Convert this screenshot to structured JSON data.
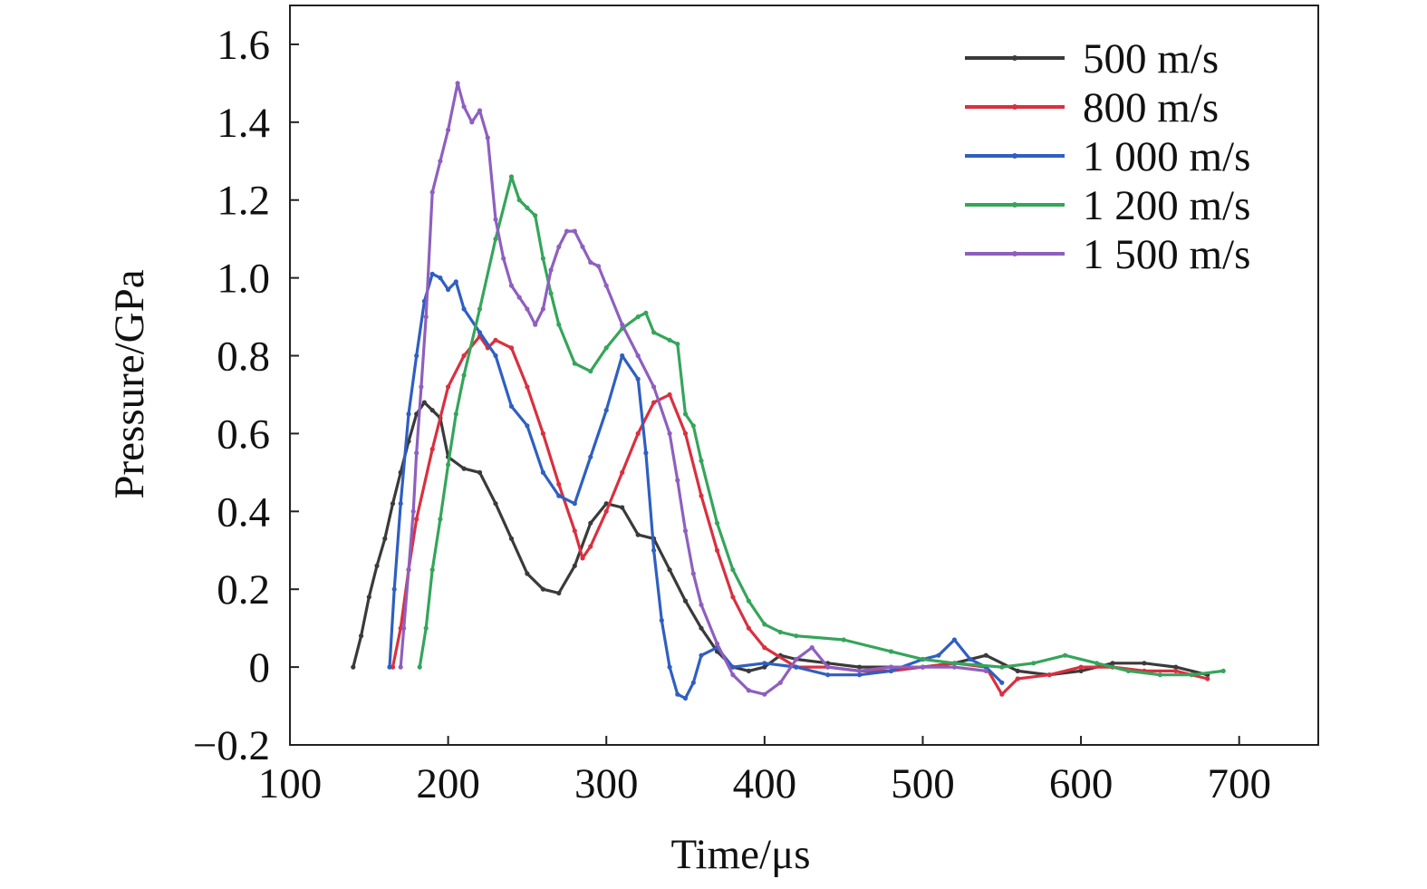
{
  "chart_data": {
    "type": "line",
    "xlabel": "Time/μs",
    "ylabel": "Pressure/GPa",
    "xlim": [
      100,
      750
    ],
    "ylim": [
      -0.2,
      1.7
    ],
    "xticks": [
      100,
      200,
      300,
      400,
      500,
      600,
      700
    ],
    "yticks": [
      -0.2,
      0,
      0.2,
      0.4,
      0.6,
      0.8,
      1.0,
      1.2,
      1.4,
      1.6
    ],
    "ytick_labels": [
      "−0.2",
      "0",
      "0.2",
      "0.4",
      "0.6",
      "0.8",
      "1.0",
      "1.2",
      "1.4",
      "1.6"
    ],
    "grid": false,
    "legend_position": "top-right",
    "series": [
      {
        "name": "500 m/s",
        "color": "#3a3a3a",
        "x": [
          140,
          145,
          150,
          155,
          160,
          165,
          170,
          175,
          180,
          185,
          190,
          195,
          200,
          210,
          220,
          230,
          240,
          250,
          260,
          270,
          280,
          290,
          300,
          310,
          320,
          330,
          340,
          350,
          360,
          370,
          380,
          390,
          400,
          410,
          420,
          440,
          460,
          480,
          500,
          520,
          540,
          560,
          580,
          600,
          620,
          640,
          660,
          680
        ],
        "y": [
          0.0,
          0.08,
          0.18,
          0.26,
          0.33,
          0.42,
          0.5,
          0.58,
          0.65,
          0.68,
          0.66,
          0.64,
          0.54,
          0.51,
          0.5,
          0.42,
          0.33,
          0.24,
          0.2,
          0.19,
          0.26,
          0.37,
          0.42,
          0.41,
          0.34,
          0.33,
          0.25,
          0.17,
          0.1,
          0.04,
          0.0,
          -0.01,
          0.0,
          0.03,
          0.02,
          0.01,
          0.0,
          0.0,
          0.0,
          0.01,
          0.03,
          -0.01,
          -0.02,
          -0.01,
          0.01,
          0.01,
          0.0,
          -0.02
        ]
      },
      {
        "name": "800 m/s",
        "color": "#d9303f",
        "x": [
          165,
          170,
          175,
          180,
          190,
          200,
          210,
          220,
          225,
          230,
          240,
          250,
          260,
          270,
          280,
          285,
          290,
          300,
          310,
          320,
          330,
          340,
          350,
          360,
          370,
          380,
          390,
          400,
          420,
          440,
          460,
          480,
          500,
          520,
          540,
          550,
          560,
          580,
          600,
          620,
          640,
          660,
          680
        ],
        "y": [
          0.0,
          0.1,
          0.25,
          0.38,
          0.56,
          0.72,
          0.8,
          0.85,
          0.82,
          0.84,
          0.82,
          0.72,
          0.6,
          0.47,
          0.35,
          0.28,
          0.31,
          0.4,
          0.5,
          0.6,
          0.68,
          0.7,
          0.6,
          0.44,
          0.3,
          0.18,
          0.1,
          0.05,
          0.0,
          0.0,
          -0.01,
          -0.01,
          0.0,
          0.01,
          0.0,
          -0.07,
          -0.03,
          -0.02,
          0.0,
          0.0,
          -0.01,
          -0.01,
          -0.03
        ]
      },
      {
        "name": "1 000 m/s",
        "color": "#2f5fc0",
        "x": [
          163,
          166,
          170,
          175,
          180,
          185,
          190,
          195,
          200,
          205,
          210,
          220,
          230,
          240,
          250,
          260,
          270,
          280,
          290,
          300,
          310,
          320,
          325,
          330,
          335,
          340,
          345,
          350,
          355,
          360,
          370,
          380,
          400,
          420,
          440,
          460,
          480,
          500,
          510,
          520,
          530,
          540,
          550
        ],
        "y": [
          0.0,
          0.2,
          0.42,
          0.65,
          0.8,
          0.94,
          1.01,
          1.0,
          0.97,
          0.99,
          0.92,
          0.86,
          0.8,
          0.67,
          0.62,
          0.5,
          0.44,
          0.42,
          0.54,
          0.66,
          0.8,
          0.74,
          0.55,
          0.3,
          0.12,
          0.0,
          -0.07,
          -0.08,
          -0.04,
          0.03,
          0.05,
          0.0,
          0.01,
          0.0,
          -0.02,
          -0.02,
          -0.01,
          0.02,
          0.03,
          0.07,
          0.02,
          0.0,
          -0.04
        ]
      },
      {
        "name": "1 200 m/s",
        "color": "#35a55a",
        "x": [
          182,
          186,
          190,
          195,
          200,
          205,
          210,
          220,
          230,
          240,
          245,
          250,
          255,
          260,
          265,
          270,
          280,
          290,
          300,
          310,
          320,
          325,
          330,
          340,
          345,
          350,
          355,
          360,
          370,
          380,
          390,
          400,
          410,
          420,
          450,
          480,
          500,
          520,
          550,
          570,
          590,
          610,
          630,
          650,
          670,
          690
        ],
        "y": [
          0.0,
          0.1,
          0.25,
          0.38,
          0.52,
          0.65,
          0.75,
          0.92,
          1.1,
          1.26,
          1.2,
          1.18,
          1.16,
          1.05,
          0.96,
          0.88,
          0.78,
          0.76,
          0.82,
          0.87,
          0.9,
          0.91,
          0.86,
          0.84,
          0.83,
          0.65,
          0.62,
          0.53,
          0.37,
          0.25,
          0.17,
          0.11,
          0.09,
          0.08,
          0.07,
          0.04,
          0.02,
          0.01,
          0.0,
          0.01,
          0.03,
          0.01,
          -0.01,
          -0.02,
          -0.02,
          -0.01
        ]
      },
      {
        "name": "1 500 m/s",
        "color": "#8e5fbf",
        "x": [
          170,
          172,
          175,
          178,
          180,
          183,
          186,
          190,
          195,
          200,
          206,
          210,
          215,
          220,
          225,
          230,
          235,
          240,
          245,
          250,
          255,
          260,
          265,
          270,
          275,
          280,
          285,
          290,
          295,
          300,
          310,
          320,
          330,
          340,
          345,
          350,
          355,
          360,
          370,
          380,
          390,
          400,
          410,
          420,
          430,
          440,
          460,
          480,
          500,
          520,
          540
        ],
        "y": [
          0.0,
          0.1,
          0.25,
          0.4,
          0.55,
          0.72,
          0.9,
          1.22,
          1.3,
          1.38,
          1.5,
          1.44,
          1.4,
          1.43,
          1.36,
          1.15,
          1.05,
          0.98,
          0.95,
          0.92,
          0.88,
          0.92,
          1.02,
          1.08,
          1.12,
          1.12,
          1.08,
          1.04,
          1.03,
          0.98,
          0.88,
          0.8,
          0.72,
          0.6,
          0.48,
          0.35,
          0.24,
          0.16,
          0.06,
          -0.02,
          -0.06,
          -0.07,
          -0.04,
          0.02,
          0.05,
          0.0,
          -0.01,
          0.0,
          0.0,
          0.0,
          -0.01
        ]
      }
    ]
  }
}
